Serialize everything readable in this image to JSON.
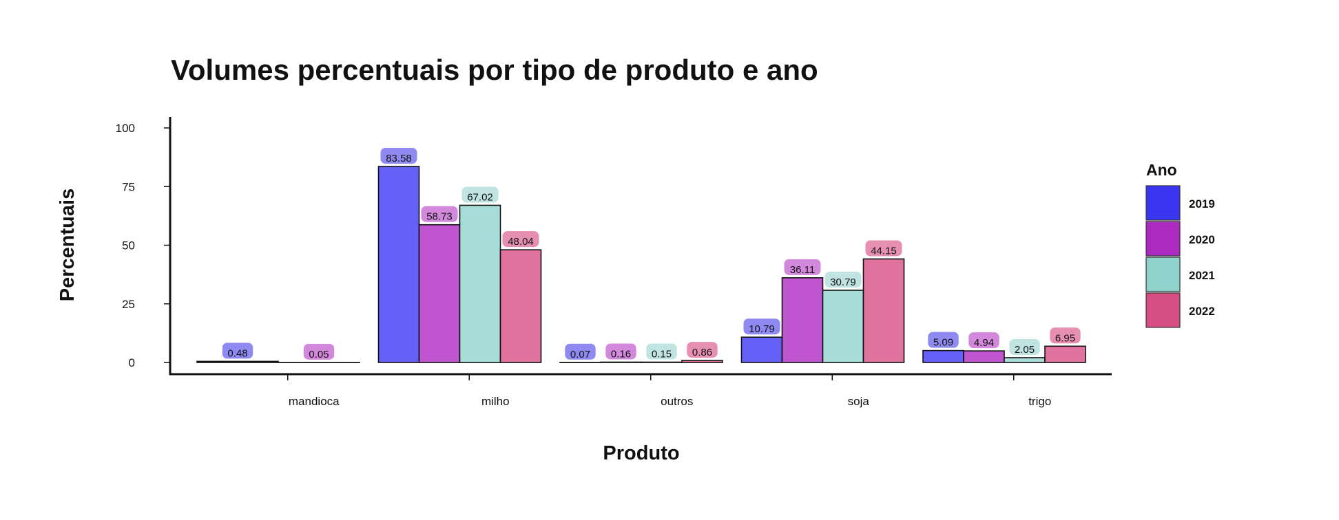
{
  "chart_data": {
    "type": "bar",
    "title": "Volumes percentuais por tipo de produto e ano",
    "xlabel": "Produto",
    "ylabel": "Percentuais",
    "categories": [
      "mandioca",
      "milho",
      "outros",
      "soja",
      "trigo"
    ],
    "yticks": [
      "0",
      "25",
      "50",
      "75",
      "100"
    ],
    "ylim": [
      0,
      100
    ],
    "grid": false,
    "legend": {
      "title": "Ano",
      "position": "right"
    },
    "series": [
      {
        "name": "2019",
        "color": "#3a35f0",
        "bar_color": "#6560f8",
        "label_bg": "#8e8af2",
        "values": [
          0.48,
          83.58,
          0.07,
          10.79,
          5.09
        ],
        "labels": [
          "0.48",
          "83.58",
          "0.07",
          "10.79",
          "5.09"
        ]
      },
      {
        "name": "2020",
        "color": "#ab2bc0",
        "bar_color": "#bf55cf",
        "label_bg": "#d288db",
        "values": [
          0.05,
          58.73,
          0.16,
          36.11,
          4.94
        ],
        "labels": [
          "0.05",
          "58.73",
          "0.16",
          "36.11",
          "4.94"
        ]
      },
      {
        "name": "2021",
        "color": "#8fd2cc",
        "bar_color": "#a8dcd9",
        "label_bg": "#bfe4e1",
        "values": [
          null,
          67.02,
          0.15,
          30.79,
          2.05
        ],
        "labels": [
          "",
          "67.02",
          "0.15",
          "30.79",
          "2.05"
        ]
      },
      {
        "name": "2022",
        "color": "#d64f83",
        "bar_color": "#e0739e",
        "label_bg": "#e68fb0",
        "values": [
          null,
          48.04,
          0.86,
          44.15,
          6.95
        ],
        "labels": [
          "",
          "48.04",
          "0.86",
          "44.15",
          "6.95"
        ]
      }
    ]
  }
}
